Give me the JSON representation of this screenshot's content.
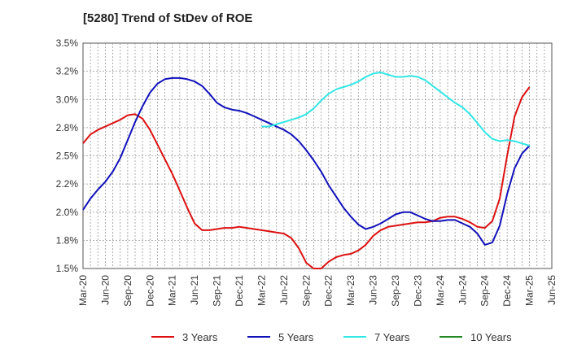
{
  "chart_data": {
    "type": "line",
    "title": "[5280]  Trend of StDev of ROE",
    "xlabel": "",
    "ylabel": "",
    "x_ticks": [
      "Mar-20",
      "Jun-20",
      "Sep-20",
      "Dec-20",
      "Mar-21",
      "Jun-21",
      "Sep-21",
      "Dec-21",
      "Mar-22",
      "Jun-22",
      "Sep-22",
      "Dec-22",
      "Mar-23",
      "Jun-23",
      "Sep-23",
      "Dec-23",
      "Mar-24",
      "Jun-24",
      "Sep-24",
      "Dec-24",
      "Mar-25",
      "Jun-25"
    ],
    "y_ticks": [
      "1.5%",
      "1.8%",
      "2.0%",
      "2.2%",
      "2.5%",
      "2.8%",
      "3.0%",
      "3.2%",
      "3.5%"
    ],
    "ylim": [
      1.5,
      3.5
    ],
    "grid": true,
    "legend_position": "bottom",
    "series": [
      {
        "name": "3 Years",
        "color": "#dd1111",
        "points": [
          [
            "Mar-20",
            2.61
          ],
          [
            "Apr-20",
            2.69
          ],
          [
            "May-20",
            2.73
          ],
          [
            "Jun-20",
            2.76
          ],
          [
            "Jul-20",
            2.79
          ],
          [
            "Aug-20",
            2.82
          ],
          [
            "Sep-20",
            2.86
          ],
          [
            "Oct-20",
            2.87
          ],
          [
            "Nov-20",
            2.83
          ],
          [
            "Dec-20",
            2.73
          ],
          [
            "Jan-21",
            2.6
          ],
          [
            "Feb-21",
            2.47
          ],
          [
            "Mar-21",
            2.34
          ],
          [
            "Apr-21",
            2.19
          ],
          [
            "May-21",
            2.04
          ],
          [
            "Jun-21",
            1.9
          ],
          [
            "Jul-21",
            1.84
          ],
          [
            "Aug-21",
            1.84
          ],
          [
            "Sep-21",
            1.85
          ],
          [
            "Oct-21",
            1.86
          ],
          [
            "Nov-21",
            1.86
          ],
          [
            "Dec-21",
            1.87
          ],
          [
            "Jan-22",
            1.86
          ],
          [
            "Feb-22",
            1.85
          ],
          [
            "Mar-22",
            1.84
          ],
          [
            "Apr-22",
            1.83
          ],
          [
            "May-22",
            1.82
          ],
          [
            "Jun-22",
            1.81
          ],
          [
            "Jul-22",
            1.77
          ],
          [
            "Aug-22",
            1.68
          ],
          [
            "Sep-22",
            1.55
          ],
          [
            "Oct-22",
            1.5
          ],
          [
            "Nov-22",
            1.5
          ],
          [
            "Dec-22",
            1.56
          ],
          [
            "Jan-23",
            1.6
          ],
          [
            "Feb-23",
            1.62
          ],
          [
            "Mar-23",
            1.63
          ],
          [
            "Apr-23",
            1.66
          ],
          [
            "May-23",
            1.71
          ],
          [
            "Jun-23",
            1.79
          ],
          [
            "Jul-23",
            1.84
          ],
          [
            "Aug-23",
            1.87
          ],
          [
            "Sep-23",
            1.88
          ],
          [
            "Oct-23",
            1.89
          ],
          [
            "Nov-23",
            1.9
          ],
          [
            "Dec-23",
            1.91
          ],
          [
            "Jan-24",
            1.91
          ],
          [
            "Feb-24",
            1.92
          ],
          [
            "Mar-24",
            1.95
          ],
          [
            "Apr-24",
            1.96
          ],
          [
            "May-24",
            1.96
          ],
          [
            "Jun-24",
            1.94
          ],
          [
            "Jul-24",
            1.91
          ],
          [
            "Aug-24",
            1.87
          ],
          [
            "Sep-24",
            1.86
          ],
          [
            "Oct-24",
            1.92
          ],
          [
            "Nov-24",
            2.12
          ],
          [
            "Dec-24",
            2.5
          ],
          [
            "Jan-25",
            2.85
          ],
          [
            "Feb-25",
            3.02
          ],
          [
            "Mar-25",
            3.11
          ]
        ]
      },
      {
        "name": "5 Years",
        "color": "#1111bb",
        "points": [
          [
            "Mar-20",
            2.02
          ],
          [
            "Apr-20",
            2.12
          ],
          [
            "May-20",
            2.2
          ],
          [
            "Jun-20",
            2.27
          ],
          [
            "Jul-20",
            2.36
          ],
          [
            "Aug-20",
            2.48
          ],
          [
            "Sep-20",
            2.64
          ],
          [
            "Oct-20",
            2.8
          ],
          [
            "Nov-20",
            2.94
          ],
          [
            "Dec-20",
            3.06
          ],
          [
            "Jan-21",
            3.14
          ],
          [
            "Feb-21",
            3.18
          ],
          [
            "Mar-21",
            3.19
          ],
          [
            "Apr-21",
            3.19
          ],
          [
            "May-21",
            3.18
          ],
          [
            "Jun-21",
            3.16
          ],
          [
            "Jul-21",
            3.12
          ],
          [
            "Aug-21",
            3.05
          ],
          [
            "Sep-21",
            2.97
          ],
          [
            "Oct-21",
            2.93
          ],
          [
            "Nov-21",
            2.91
          ],
          [
            "Dec-21",
            2.9
          ],
          [
            "Jan-22",
            2.88
          ],
          [
            "Feb-22",
            2.85
          ],
          [
            "Mar-22",
            2.82
          ],
          [
            "Apr-22",
            2.79
          ],
          [
            "May-22",
            2.76
          ],
          [
            "Jun-22",
            2.73
          ],
          [
            "Jul-22",
            2.69
          ],
          [
            "Aug-22",
            2.63
          ],
          [
            "Sep-22",
            2.55
          ],
          [
            "Oct-22",
            2.46
          ],
          [
            "Nov-22",
            2.36
          ],
          [
            "Dec-22",
            2.24
          ],
          [
            "Jan-23",
            2.14
          ],
          [
            "Feb-23",
            2.04
          ],
          [
            "Mar-23",
            1.96
          ],
          [
            "Apr-23",
            1.89
          ],
          [
            "May-23",
            1.85
          ],
          [
            "Jun-23",
            1.87
          ],
          [
            "Jul-23",
            1.9
          ],
          [
            "Aug-23",
            1.94
          ],
          [
            "Sep-23",
            1.98
          ],
          [
            "Oct-23",
            2.0
          ],
          [
            "Nov-23",
            2.0
          ],
          [
            "Dec-23",
            1.97
          ],
          [
            "Jan-24",
            1.94
          ],
          [
            "Feb-24",
            1.92
          ],
          [
            "Mar-24",
            1.92
          ],
          [
            "Apr-24",
            1.93
          ],
          [
            "May-24",
            1.93
          ],
          [
            "Jun-24",
            1.9
          ],
          [
            "Jul-24",
            1.87
          ],
          [
            "Aug-24",
            1.81
          ],
          [
            "Sep-24",
            1.71
          ],
          [
            "Oct-24",
            1.73
          ],
          [
            "Nov-24",
            1.88
          ],
          [
            "Dec-24",
            2.16
          ],
          [
            "Jan-25",
            2.39
          ],
          [
            "Feb-25",
            2.52
          ],
          [
            "Mar-25",
            2.59
          ]
        ]
      },
      {
        "name": "7 Years",
        "color": "#33e6e6",
        "points": [
          [
            "Mar-22",
            2.76
          ],
          [
            "Apr-22",
            2.76
          ],
          [
            "May-22",
            2.78
          ],
          [
            "Jun-22",
            2.8
          ],
          [
            "Jul-22",
            2.82
          ],
          [
            "Aug-22",
            2.84
          ],
          [
            "Sep-22",
            2.87
          ],
          [
            "Oct-22",
            2.92
          ],
          [
            "Nov-22",
            2.99
          ],
          [
            "Dec-22",
            3.05
          ],
          [
            "Jan-23",
            3.09
          ],
          [
            "Feb-23",
            3.11
          ],
          [
            "Mar-23",
            3.13
          ],
          [
            "Apr-23",
            3.16
          ],
          [
            "May-23",
            3.2
          ],
          [
            "Jun-23",
            3.23
          ],
          [
            "Jul-23",
            3.24
          ],
          [
            "Aug-23",
            3.22
          ],
          [
            "Sep-23",
            3.2
          ],
          [
            "Oct-23",
            3.2
          ],
          [
            "Nov-23",
            3.21
          ],
          [
            "Dec-23",
            3.2
          ],
          [
            "Jan-24",
            3.17
          ],
          [
            "Feb-24",
            3.12
          ],
          [
            "Mar-24",
            3.07
          ],
          [
            "Apr-24",
            3.02
          ],
          [
            "May-24",
            2.97
          ],
          [
            "Jun-24",
            2.93
          ],
          [
            "Jul-24",
            2.87
          ],
          [
            "Aug-24",
            2.79
          ],
          [
            "Sep-24",
            2.71
          ],
          [
            "Oct-24",
            2.65
          ],
          [
            "Nov-24",
            2.63
          ],
          [
            "Dec-24",
            2.64
          ],
          [
            "Jan-25",
            2.63
          ],
          [
            "Feb-25",
            2.61
          ],
          [
            "Mar-25",
            2.59
          ]
        ]
      },
      {
        "name": "10 Years",
        "color": "#228822",
        "points": []
      }
    ]
  }
}
